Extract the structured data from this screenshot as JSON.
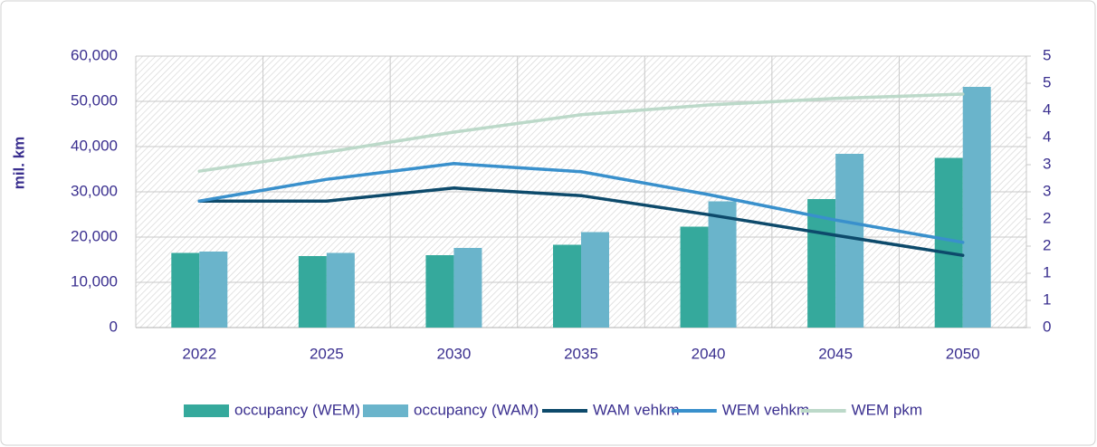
{
  "chart_data": {
    "type": "bar_line",
    "y_label": "mil. km",
    "categories": [
      "2022",
      "2025",
      "2030",
      "2035",
      "2040",
      "2045",
      "2050"
    ],
    "series": [
      {
        "name": "occupancy (WEM)",
        "type": "bar",
        "color": "#35a99c",
        "values": [
          16500,
          15800,
          16000,
          18300,
          22300,
          28400,
          37500
        ]
      },
      {
        "name": "occupancy (WAM)",
        "type": "bar",
        "color": "#6ab4cb",
        "values": [
          16800,
          16500,
          17600,
          21100,
          27900,
          38400,
          53200
        ]
      },
      {
        "name": "WAM vehkm",
        "type": "line",
        "axis": "y2",
        "color": "#0d4a6b",
        "values": [
          2.33,
          2.33,
          2.57,
          2.43,
          2.08,
          1.7,
          1.33
        ]
      },
      {
        "name": "WEM vehkm",
        "type": "line",
        "axis": "y2",
        "color": "#3990cc",
        "values": [
          2.33,
          2.73,
          3.02,
          2.87,
          2.45,
          1.98,
          1.57
        ]
      },
      {
        "name": "WEM pkm",
        "type": "line",
        "axis": "y2",
        "color": "#bcd9c9",
        "values": [
          2.88,
          3.23,
          3.6,
          3.92,
          4.1,
          4.22,
          4.3
        ]
      }
    ],
    "ylim": [
      0,
      60000
    ],
    "yticks": [
      0,
      {
        "value": 10000,
        "label": "10,000"
      },
      {
        "value": 20000,
        "label": "20,000"
      },
      {
        "value": 30000,
        "label": "30,000"
      },
      {
        "value": 40000,
        "label": "40,000"
      },
      {
        "value": 50000,
        "label": "50,000"
      },
      {
        "value": 60000,
        "label": "60,000"
      }
    ],
    "y2lim": [
      0,
      5
    ],
    "y2ticks": [
      0,
      {
        "value": 0.5,
        "label": "1"
      },
      1,
      {
        "value": 1.5,
        "label": "2"
      },
      2,
      {
        "value": 2.5,
        "label": "3"
      },
      3,
      {
        "value": 3.5,
        "label": "4"
      },
      4,
      {
        "value": 4.5,
        "label": "5"
      },
      5
    ],
    "grid": true,
    "legend": "bottom"
  }
}
